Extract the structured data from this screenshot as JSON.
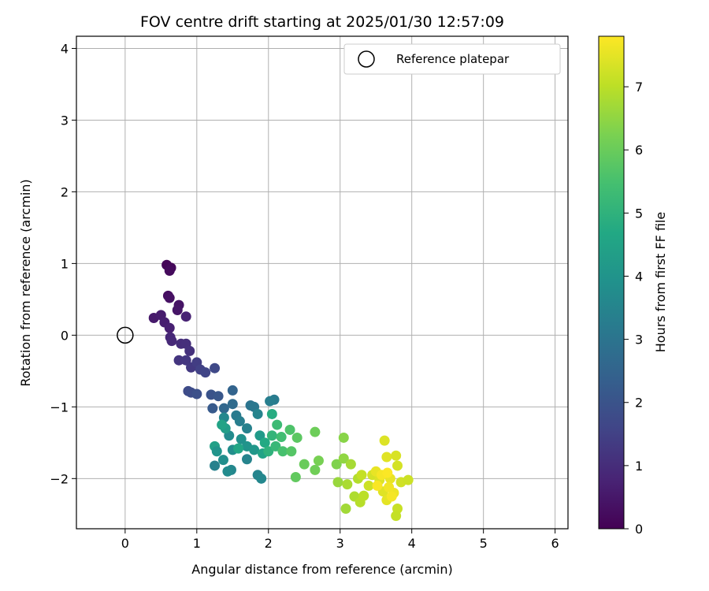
{
  "chart_data": {
    "type": "scatter",
    "title": "FOV centre drift starting at 2025/01/30 12:57:09",
    "xlabel": "Angular distance from reference (arcmin)",
    "ylabel": "Rotation from reference (arcmin)",
    "xlim": [
      -0.68,
      6.18
    ],
    "ylim": [
      -2.7,
      4.17
    ],
    "xticks": [
      0,
      1,
      2,
      3,
      4,
      5,
      6
    ],
    "yticks": [
      -2,
      -1,
      0,
      1,
      2,
      3,
      4
    ],
    "tick_label_minus": "−2",
    "grid": true,
    "legend": {
      "position": "top-right",
      "label": "Reference platepar"
    },
    "reference_point": {
      "x": 0,
      "y": 0
    },
    "colorbar": {
      "label": "Hours from first FF file",
      "range": [
        0,
        7.8
      ],
      "ticks": [
        0,
        1,
        2,
        3,
        4,
        5,
        6,
        7
      ],
      "colormap": "viridis"
    },
    "points": [
      [
        0.58,
        0.98,
        0.1
      ],
      [
        0.64,
        0.94,
        0.15
      ],
      [
        0.62,
        0.9,
        0.2
      ],
      [
        0.6,
        0.55,
        0.3
      ],
      [
        0.62,
        0.52,
        0.35
      ],
      [
        0.75,
        0.42,
        0.4
      ],
      [
        0.73,
        0.35,
        0.45
      ],
      [
        0.4,
        0.24,
        0.55
      ],
      [
        0.5,
        0.28,
        0.6
      ],
      [
        0.55,
        0.18,
        0.65
      ],
      [
        0.62,
        0.1,
        0.7
      ],
      [
        0.85,
        0.26,
        0.75
      ],
      [
        0.63,
        -0.03,
        0.85
      ],
      [
        0.65,
        -0.08,
        0.9
      ],
      [
        0.78,
        -0.12,
        1.0
      ],
      [
        0.85,
        -0.12,
        1.05
      ],
      [
        0.9,
        -0.22,
        1.1
      ],
      [
        0.75,
        -0.35,
        1.2
      ],
      [
        0.85,
        -0.35,
        1.25
      ],
      [
        0.92,
        -0.45,
        1.3
      ],
      [
        1.0,
        -0.38,
        1.4
      ],
      [
        1.05,
        -0.48,
        1.5
      ],
      [
        1.12,
        -0.52,
        1.6
      ],
      [
        1.25,
        -0.46,
        1.7
      ],
      [
        0.88,
        -0.78,
        1.75
      ],
      [
        0.92,
        -0.8,
        1.8
      ],
      [
        1.0,
        -0.82,
        1.9
      ],
      [
        1.2,
        -0.83,
        2.0
      ],
      [
        1.3,
        -0.85,
        2.1
      ],
      [
        1.22,
        -1.02,
        2.2
      ],
      [
        1.5,
        -0.77,
        2.5
      ],
      [
        1.38,
        -1.02,
        2.6
      ],
      [
        1.5,
        -0.96,
        2.7
      ],
      [
        1.75,
        -0.98,
        3.0
      ],
      [
        1.8,
        -1.0,
        3.1
      ],
      [
        1.55,
        -1.12,
        3.2
      ],
      [
        1.6,
        -1.2,
        3.3
      ],
      [
        1.7,
        -1.3,
        3.4
      ],
      [
        1.85,
        -1.1,
        3.5
      ],
      [
        1.38,
        -1.15,
        3.6
      ],
      [
        1.45,
        -1.4,
        3.7
      ],
      [
        1.5,
        -1.6,
        3.8
      ],
      [
        1.62,
        -1.45,
        3.9
      ],
      [
        1.7,
        -1.55,
        4.0
      ],
      [
        1.8,
        -1.6,
        4.1
      ],
      [
        1.88,
        -1.4,
        4.2
      ],
      [
        1.4,
        -1.3,
        4.3
      ],
      [
        1.25,
        -1.55,
        4.4
      ],
      [
        1.35,
        -1.25,
        4.5
      ],
      [
        1.58,
        -1.58,
        4.6
      ],
      [
        1.95,
        -1.5,
        4.7
      ],
      [
        2.05,
        -1.1,
        4.8
      ],
      [
        2.08,
        -0.9,
        3.2
      ],
      [
        2.02,
        -0.92,
        3.3
      ],
      [
        1.7,
        -1.73,
        3.5
      ],
      [
        1.48,
        -1.88,
        3.6
      ],
      [
        1.43,
        -1.9,
        3.7
      ],
      [
        1.25,
        -1.82,
        3.4
      ],
      [
        1.37,
        -1.74,
        3.8
      ],
      [
        1.28,
        -1.62,
        4.0
      ],
      [
        1.85,
        -1.95,
        3.5
      ],
      [
        1.9,
        -2.0,
        3.6
      ],
      [
        1.92,
        -1.65,
        4.5
      ],
      [
        2.0,
        -1.62,
        5.0
      ],
      [
        2.05,
        -1.4,
        5.1
      ],
      [
        2.1,
        -1.55,
        5.2
      ],
      [
        2.12,
        -1.25,
        5.3
      ],
      [
        2.18,
        -1.42,
        5.4
      ],
      [
        2.2,
        -1.62,
        5.5
      ],
      [
        2.3,
        -1.32,
        5.6
      ],
      [
        2.32,
        -1.62,
        5.7
      ],
      [
        2.4,
        -1.43,
        5.8
      ],
      [
        2.38,
        -1.98,
        5.9
      ],
      [
        2.5,
        -1.8,
        6.0
      ],
      [
        2.65,
        -1.35,
        6.05
      ],
      [
        2.65,
        -1.88,
        6.1
      ],
      [
        2.7,
        -1.75,
        6.2
      ],
      [
        2.95,
        -1.8,
        6.3
      ],
      [
        3.05,
        -1.43,
        6.4
      ],
      [
        3.05,
        -1.72,
        6.5
      ],
      [
        2.97,
        -2.05,
        6.6
      ],
      [
        3.08,
        -2.42,
        6.7
      ],
      [
        3.15,
        -1.8,
        6.75
      ],
      [
        3.1,
        -2.08,
        6.8
      ],
      [
        3.2,
        -2.25,
        6.85
      ],
      [
        3.25,
        -2.0,
        6.9
      ],
      [
        3.28,
        -2.33,
        6.95
      ],
      [
        3.33,
        -2.24,
        7.0
      ],
      [
        3.3,
        -1.95,
        7.1
      ],
      [
        3.4,
        -2.1,
        7.2
      ],
      [
        3.45,
        -1.95,
        7.3
      ],
      [
        3.55,
        -2.02,
        7.4
      ],
      [
        3.6,
        -2.18,
        7.45
      ],
      [
        3.65,
        -2.3,
        7.5
      ],
      [
        3.7,
        -2.0,
        7.55
      ],
      [
        3.75,
        -2.2,
        7.6
      ],
      [
        3.62,
        -1.47,
        7.4
      ],
      [
        3.65,
        -1.7,
        7.45
      ],
      [
        3.78,
        -1.68,
        7.35
      ],
      [
        3.8,
        -1.82,
        7.3
      ],
      [
        3.85,
        -2.05,
        7.25
      ],
      [
        3.95,
        -2.02,
        7.2
      ],
      [
        3.8,
        -2.42,
        7.15
      ],
      [
        3.78,
        -2.52,
        7.1
      ],
      [
        3.5,
        -1.9,
        7.55
      ],
      [
        3.68,
        -2.12,
        7.65
      ],
      [
        3.72,
        -2.25,
        7.7
      ],
      [
        3.58,
        -1.95,
        7.72
      ],
      [
        3.52,
        -2.1,
        7.75
      ],
      [
        3.66,
        -1.92,
        7.78
      ]
    ]
  }
}
